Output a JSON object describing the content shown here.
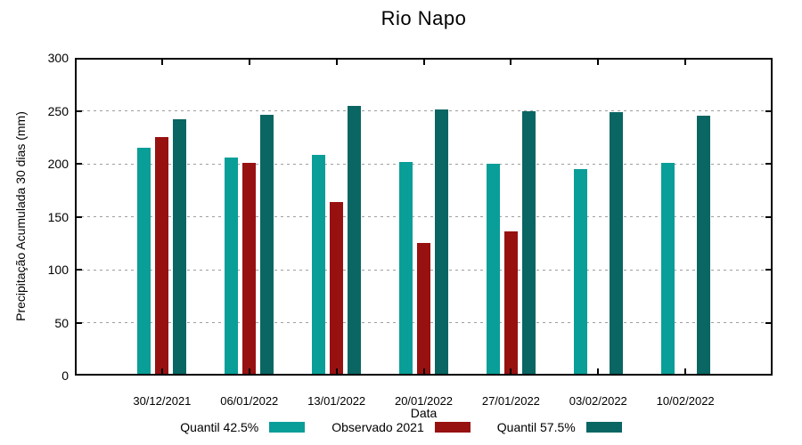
{
  "title": "Rio Napo",
  "chart_data": {
    "type": "bar",
    "title": "Rio Napo",
    "xlabel": "Data",
    "ylabel": "Precipitação Acumulada 30 dias (mm)",
    "ylim": [
      0,
      300
    ],
    "yticks": [
      0,
      50,
      100,
      150,
      200,
      250,
      300
    ],
    "grid": true,
    "legend_position": "bottom",
    "categories": [
      "30/12/2021",
      "06/01/2022",
      "13/01/2022",
      "20/01/2022",
      "27/01/2022",
      "03/02/2022",
      "10/02/2022"
    ],
    "series": [
      {
        "name": "Quantil 42.5%",
        "color": "#0A9E98",
        "values": [
          215,
          206,
          208,
          202,
          200,
          195,
          201
        ]
      },
      {
        "name": "Observado 2021",
        "color": "#981111",
        "values": [
          225,
          201,
          164,
          125,
          136,
          null,
          null
        ]
      },
      {
        "name": "Quantil 57.5%",
        "color": "#096663",
        "values": [
          242,
          246,
          255,
          251,
          250,
          249,
          245
        ]
      }
    ]
  },
  "colors": {
    "background": "#ffffff",
    "frame": "#000000",
    "grid": "#9e9e9e",
    "text": "#000000"
  }
}
